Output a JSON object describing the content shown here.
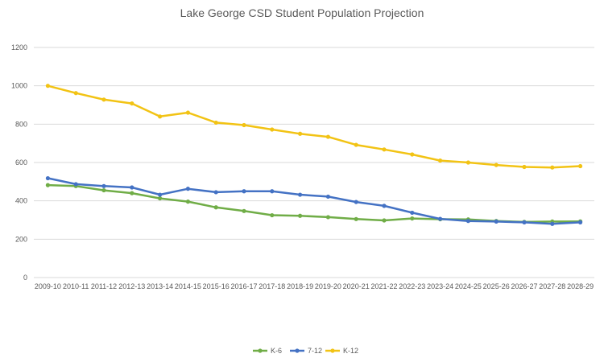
{
  "chart_data": {
    "type": "line",
    "title": "Lake George CSD Student Population Projection",
    "xlabel": "",
    "ylabel": "",
    "ylim": [
      0,
      1200
    ],
    "yticks": [
      0,
      200,
      400,
      600,
      800,
      1000,
      1200
    ],
    "grid": true,
    "legend_position": "bottom",
    "categories": [
      "2009-10",
      "2010-11",
      "2011-12",
      "2012-13",
      "2013-14",
      "2014-15",
      "2015-16",
      "2016-17",
      "2017-18",
      "2018-19",
      "2019-20",
      "2020-21",
      "2021-22",
      "2022-23",
      "2023-24",
      "2024-25",
      "2025-26",
      "2026-27",
      "2027-28",
      "2028-29"
    ],
    "series": [
      {
        "name": "K-6",
        "color": "#70ad47",
        "values": [
          482,
          477,
          455,
          440,
          413,
          396,
          366,
          347,
          325,
          322,
          315,
          305,
          298,
          308,
          304,
          303,
          295,
          290,
          292,
          293
        ]
      },
      {
        "name": "7-12",
        "color": "#4472c4",
        "values": [
          518,
          487,
          477,
          470,
          432,
          463,
          445,
          450,
          450,
          432,
          422,
          394,
          374,
          338,
          306,
          295,
          292,
          288,
          280,
          288
        ]
      },
      {
        "name": "K-12",
        "color": "#f2c314",
        "values": [
          1000,
          962,
          928,
          908,
          840,
          860,
          808,
          795,
          772,
          750,
          734,
          692,
          668,
          642,
          610,
          600,
          587,
          577,
          574,
          581
        ]
      }
    ]
  }
}
